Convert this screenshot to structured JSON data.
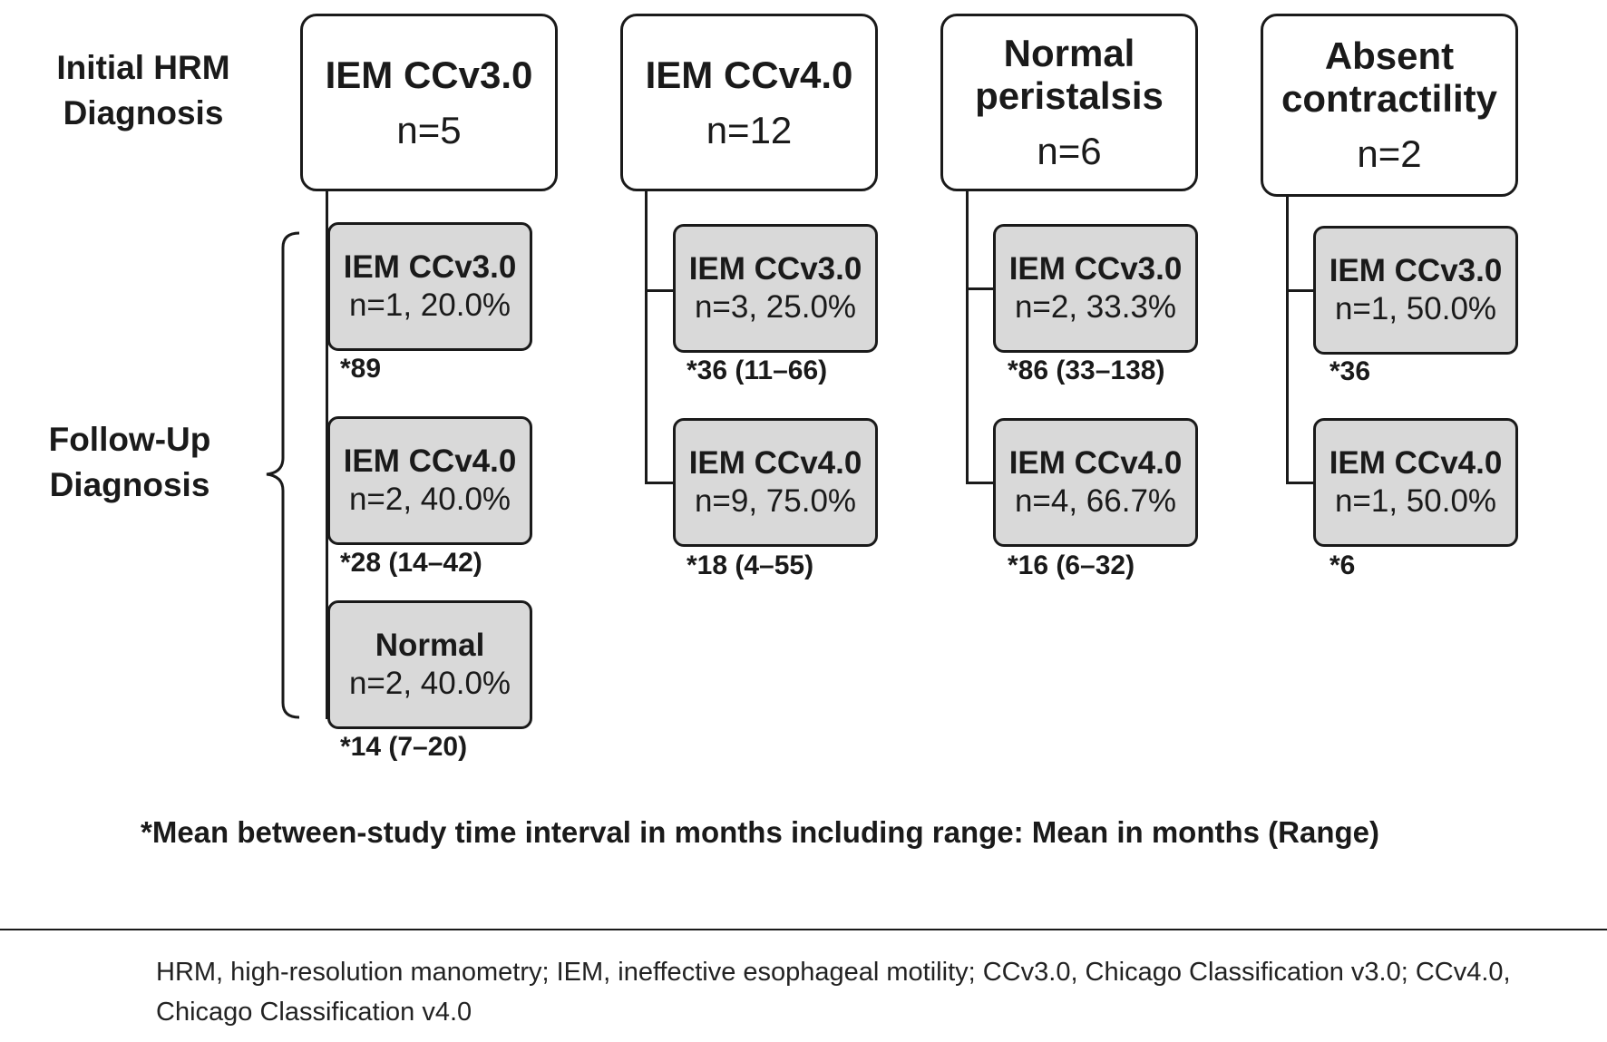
{
  "labels": {
    "initial": "Initial HRM\nDiagnosis",
    "followup": "Follow-Up\nDiagnosis"
  },
  "groups": [
    {
      "title": "IEM CCv3.0",
      "n": "n=5",
      "children": [
        {
          "title": "IEM CCv3.0",
          "n": "n=1, 20.0%",
          "interval": "*89"
        },
        {
          "title": "IEM CCv4.0",
          "n": "n=2, 40.0%",
          "interval": "*28 (14–42)"
        },
        {
          "title": "Normal",
          "n": "n=2, 40.0%",
          "interval": "*14 (7–20)"
        }
      ]
    },
    {
      "title": "IEM CCv4.0",
      "n": "n=12",
      "children": [
        {
          "title": "IEM CCv3.0",
          "n": "n=3, 25.0%",
          "interval": "*36 (11–66)"
        },
        {
          "title": "IEM CCv4.0",
          "n": "n=9, 75.0%",
          "interval": "*18 (4–55)"
        }
      ]
    },
    {
      "title": "Normal\nperistalsis",
      "n": "n=6",
      "children": [
        {
          "title": "IEM CCv3.0",
          "n": "n=2, 33.3%",
          "interval": "*86 (33–138)"
        },
        {
          "title": "IEM CCv4.0",
          "n": "n=4, 66.7%",
          "interval": "*16 (6–32)"
        }
      ]
    },
    {
      "title": "Absent\ncontractility",
      "n": "n=2",
      "children": [
        {
          "title": "IEM CCv3.0",
          "n": "n=1, 50.0%",
          "interval": "*36"
        },
        {
          "title": "IEM CCv4.0",
          "n": "n=1, 50.0%",
          "interval": "*6"
        }
      ]
    }
  ],
  "note": "*Mean between-study time interval in months including range: Mean in months (Range)",
  "footnote": "HRM, high-resolution manometry; IEM, ineffective esophageal motility; CCv3.0, Chicago Classification v3.0; CCv4.0, Chicago Classification v4.0"
}
